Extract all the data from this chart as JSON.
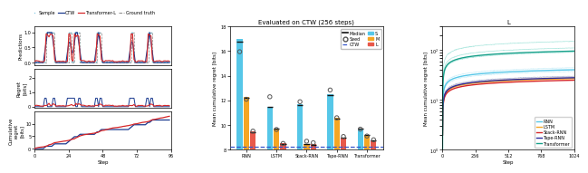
{
  "left_panel": {
    "x_ticks": [
      0,
      24,
      48,
      72,
      96
    ],
    "colors": {
      "sample": "#7ec8e3",
      "ctw": "#1a3a8f",
      "transformer": "#d62728",
      "ground_truth": "#888888"
    }
  },
  "middle_panel": {
    "title": "Evaluated on CTW (256 steps)",
    "ylabel": "Mean cumulative regret [bits]",
    "ylim": [
      8,
      18
    ],
    "yticks": [
      8,
      10,
      12,
      14,
      16,
      18
    ],
    "ctw_line": 8.25,
    "categories": [
      "RNN",
      "LSTM",
      "Stack-RNN",
      "Tape-RNN",
      "Transformer"
    ],
    "bar_s": [
      17.0,
      11.5,
      11.7,
      12.5,
      9.75
    ],
    "bar_m": [
      12.3,
      9.75,
      8.5,
      10.6,
      9.2
    ],
    "bar_l": [
      9.5,
      8.55,
      8.45,
      9.0,
      8.8
    ],
    "median_s": [
      16.8,
      11.45,
      11.65,
      12.45,
      9.72
    ],
    "median_m": [
      12.2,
      9.7,
      8.45,
      10.5,
      9.18
    ],
    "median_l": [
      9.45,
      8.5,
      8.42,
      8.98,
      8.78
    ],
    "seed_s": [
      15.95,
      12.3,
      11.9,
      12.85,
      9.68
    ],
    "seed_m": [
      12.1,
      9.65,
      8.7,
      10.6,
      9.12
    ],
    "seed_l": [
      9.52,
      8.52,
      8.58,
      9.08,
      8.82
    ],
    "colors_s": "#56c7e8",
    "colors_m": "#f5a623",
    "colors_l": "#e8584a"
  },
  "right_panel": {
    "title": "L",
    "ylabel": "Mean cumulative regret [bits]",
    "xlabel": "Step",
    "xticks": [
      0,
      256,
      512,
      768,
      1024
    ],
    "series_names": [
      "RNN",
      "LSTM",
      "Stack-RNN",
      "Tape-RNN",
      "Transformer"
    ],
    "bold_colors": [
      "#56c7e8",
      "#f5a623",
      "#d62728",
      "#2b2b9e",
      "#17a08a"
    ],
    "faint_colors": [
      "#a8e3f4",
      "#fad08a",
      "#e88a8a",
      "#7080c0",
      "#5bcfbe"
    ]
  }
}
